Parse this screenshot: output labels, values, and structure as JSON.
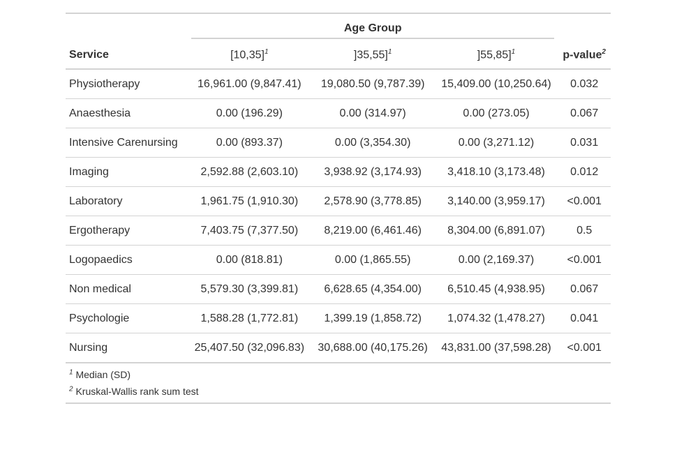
{
  "table": {
    "spanner": "Age Group",
    "columns": {
      "service": "Service",
      "g1": "[10,35]",
      "g2": "]35,55]",
      "g3": "]55,85]",
      "pvalue": "p-value",
      "g_marker": "1",
      "p_marker": "2"
    },
    "rows": [
      {
        "service": "Physiotherapy",
        "g1": "16,961.00 (9,847.41)",
        "g2": "19,080.50 (9,787.39)",
        "g3": "15,409.00 (10,250.64)",
        "p": "0.032"
      },
      {
        "service": "Anaesthesia",
        "g1": "0.00 (196.29)",
        "g2": "0.00 (314.97)",
        "g3": "0.00 (273.05)",
        "p": "0.067"
      },
      {
        "service": "Intensive Carenursing",
        "g1": "0.00 (893.37)",
        "g2": "0.00 (3,354.30)",
        "g3": "0.00 (3,271.12)",
        "p": "0.031"
      },
      {
        "service": "Imaging",
        "g1": "2,592.88 (2,603.10)",
        "g2": "3,938.92 (3,174.93)",
        "g3": "3,418.10 (3,173.48)",
        "p": "0.012"
      },
      {
        "service": "Laboratory",
        "g1": "1,961.75 (1,910.30)",
        "g2": "2,578.90 (3,778.85)",
        "g3": "3,140.00 (3,959.17)",
        "p": "<0.001"
      },
      {
        "service": "Ergotherapy",
        "g1": "7,403.75 (7,377.50)",
        "g2": "8,219.00 (6,461.46)",
        "g3": "8,304.00 (6,891.07)",
        "p": "0.5"
      },
      {
        "service": "Logopaedics",
        "g1": "0.00 (818.81)",
        "g2": "0.00 (1,865.55)",
        "g3": "0.00 (2,169.37)",
        "p": "<0.001"
      },
      {
        "service": "Non medical",
        "g1": "5,579.30 (3,399.81)",
        "g2": "6,628.65 (4,354.00)",
        "g3": "6,510.45 (4,938.95)",
        "p": "0.067"
      },
      {
        "service": "Psychologie",
        "g1": "1,588.28 (1,772.81)",
        "g2": "1,399.19 (1,858.72)",
        "g3": "1,074.32 (1,478.27)",
        "p": "0.041"
      },
      {
        "service": "Nursing",
        "g1": "25,407.50 (32,096.83)",
        "g2": "30,688.00 (40,175.26)",
        "g3": "43,831.00 (37,598.28)",
        "p": "<0.001"
      }
    ],
    "footnotes": [
      {
        "marker": "1",
        "text": "Median (SD)"
      },
      {
        "marker": "2",
        "text": "Kruskal-Wallis rank sum test"
      }
    ]
  }
}
